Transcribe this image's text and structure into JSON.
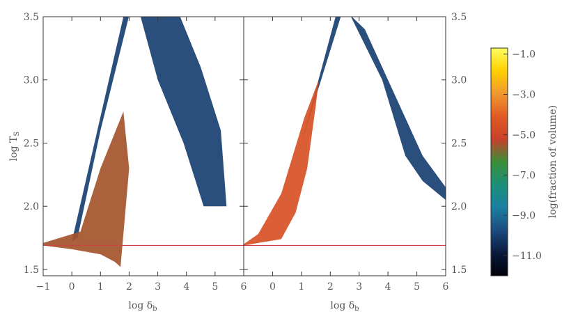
{
  "chart_data": [
    {
      "type": "heatmap",
      "panel": "left",
      "xlabel": "log δb",
      "ylabel": "log Ts",
      "xlim": [
        -1,
        6
      ],
      "ylim": [
        1.45,
        3.5
      ],
      "xticks": [
        "−1",
        "0",
        "1",
        "2",
        "3",
        "4",
        "5",
        "6"
      ],
      "yticks": [
        "1.5",
        "2.0",
        "2.5",
        "3.0",
        "3.5"
      ],
      "reference_line": {
        "y": 1.69,
        "color": "#d04040"
      },
      "regions": [
        {
          "desc": "equation-of-state ridge",
          "points": [
            [
              -1,
              1.69
            ],
            [
              0,
              1.66
            ],
            [
              1,
              1.62
            ],
            [
              1.5,
              1.56
            ],
            [
              1.7,
              1.52
            ],
            [
              2.0,
              2.3
            ],
            [
              1.8,
              2.75
            ],
            [
              1.0,
              2.3
            ],
            [
              0.3,
              1.8
            ],
            [
              -1,
              1.71
            ]
          ],
          "level": -5.5
        },
        {
          "desc": "shocked gas plume",
          "points": [
            [
              0,
              1.72
            ],
            [
              1.8,
              3.5
            ],
            [
              2.4,
              3.5
            ],
            [
              3.0,
              3.0
            ],
            [
              3.9,
              2.5
            ],
            [
              4.6,
              2.0
            ],
            [
              5.4,
              2.0
            ],
            [
              5.2,
              2.6
            ],
            [
              4.5,
              3.1
            ],
            [
              3.6,
              3.6
            ],
            [
              2.1,
              3.6
            ],
            [
              1.0,
              2.6
            ],
            [
              0.2,
              1.75
            ]
          ],
          "level": -10.0
        }
      ]
    },
    {
      "type": "heatmap",
      "panel": "right",
      "xlabel": "log δb",
      "ylabel": "log Ts",
      "xlim": [
        -1,
        6
      ],
      "ylim": [
        1.45,
        3.5
      ],
      "xticks": [
        "0",
        "1",
        "2",
        "3",
        "4",
        "5",
        "6"
      ],
      "yticks": [
        "1.5",
        "2.0",
        "2.5",
        "3.0",
        "3.5"
      ],
      "reference_line": {
        "y": 1.69,
        "color": "#d04040"
      },
      "regions": [
        {
          "desc": "photoionised ridge",
          "points": [
            [
              -1,
              1.69
            ],
            [
              0.3,
              1.74
            ],
            [
              0.8,
              1.95
            ],
            [
              1.2,
              2.3
            ],
            [
              1.5,
              2.8
            ],
            [
              1.6,
              3.0
            ],
            [
              1.1,
              2.7
            ],
            [
              0.3,
              2.1
            ],
            [
              -0.5,
              1.78
            ],
            [
              -1,
              1.7
            ]
          ],
          "level": -4.5
        },
        {
          "desc": "hot diffuse plume",
          "points": [
            [
              1.0,
              2.5
            ],
            [
              2.5,
              3.6
            ],
            [
              3.8,
              3.0
            ],
            [
              4.6,
              2.4
            ],
            [
              5.2,
              2.2
            ],
            [
              6.0,
              2.05
            ],
            [
              6.0,
              2.15
            ],
            [
              5.2,
              2.4
            ],
            [
              4.2,
              2.9
            ],
            [
              3.2,
              3.4
            ],
            [
              2.3,
              3.6
            ]
          ],
          "level": -10.0
        }
      ]
    },
    {
      "type": "colorbar",
      "label": "log(fraction of volume)",
      "ticks": [
        "−1.0",
        "−3.0",
        "−5.0",
        "−7.0",
        "−9.0",
        "−11.0"
      ],
      "tick_values": [
        -1.0,
        -3.0,
        -5.0,
        -7.0,
        -9.0,
        -11.0
      ],
      "range": [
        -12.0,
        -0.7
      ],
      "colormap": [
        "#000008",
        "#0a1a3c",
        "#1c4c82",
        "#1a7fa0",
        "#1b8f7a",
        "#3a8f38",
        "#c8402a",
        "#e05a22",
        "#f09830",
        "#ffd000",
        "#ffff60"
      ]
    }
  ]
}
